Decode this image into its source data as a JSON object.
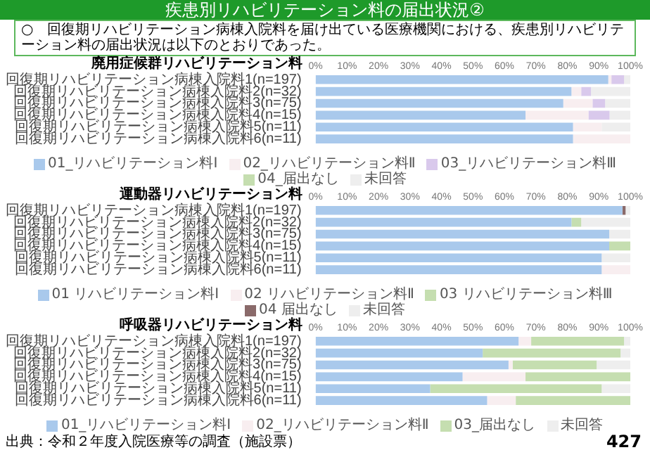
{
  "chart_data": [
    {
      "type": "bar",
      "orientation": "horizontal",
      "stacked": true,
      "title": "廃用症候群リハビリテーション料",
      "annotations": [
        "疾患別リハビリテーション料の届出状況②",
        "○　回復期リハビリテーション病棟入院料を届け出ている医療機関における、疾患別リハビリテーション料の届出状況は以下のとおりであった。"
      ],
      "categories": [
        "回復期リハビリテーション病棟入院料1(n=197)",
        "回復期リハビリテーション病棟入院料2(n=32)",
        "回復期リハビリテーション病棟入院料3(n=75)",
        "回復期リハビリテーション病棟入院料4(n=15)",
        "回復期リハビリテーション病棟入院料5(n=11)",
        "回復期リハビリテーション病棟入院料6(n=11)"
      ],
      "series": [
        {
          "name": "01_リハビリテーション料Ⅰ",
          "color": "#a9c9ec",
          "values": [
            93,
            81.3,
            78.7,
            66.7,
            81.8,
            81.8
          ]
        },
        {
          "name": "02_リハビリテーション料Ⅱ",
          "color": "#f8eef0",
          "values": [
            1,
            3.1,
            9.3,
            20,
            9.1,
            18.2
          ]
        },
        {
          "name": "03_リハビリテーション料Ⅲ",
          "color": "#d9c9ec",
          "values": [
            4,
            3.1,
            4,
            6.7,
            0,
            0
          ]
        },
        {
          "name": "04_届出なし",
          "color": "#c5deb0",
          "values": [
            0,
            0,
            0,
            0,
            0,
            0
          ]
        },
        {
          "name": "未回答",
          "color": "#eeeeee",
          "values": [
            2,
            12.5,
            8,
            6.6,
            9.1,
            0
          ]
        }
      ],
      "xlim": [
        0,
        100
      ],
      "xticks": [
        {
          "value": 0,
          "label": "0%"
        },
        {
          "value": 10,
          "label": "10%"
        },
        {
          "value": 20,
          "label": "20%"
        },
        {
          "value": 30,
          "label": "30%"
        },
        {
          "value": 40,
          "label": "40%"
        },
        {
          "value": 50,
          "label": "50%"
        },
        {
          "value": 60,
          "label": "60%"
        },
        {
          "value": 70,
          "label": "70%"
        },
        {
          "value": 80,
          "label": "80%"
        },
        {
          "value": 90,
          "label": "90%"
        },
        {
          "value": 100,
          "label": "100%"
        }
      ],
      "legend": "bottom"
    },
    {
      "type": "bar",
      "orientation": "horizontal",
      "stacked": true,
      "title": "運動器リハビリテーション料",
      "categories": [
        "回復期リハビリテーション病棟入院料1(n=197)",
        "回復期リハビリテーション病棟入院料2(n=32)",
        "回復期リハビリテーション病棟入院料3(n=75)",
        "回復期リハビリテーション病棟入院料4(n=15)",
        "回復期リハビリテーション病棟入院料5(n=11)",
        "回復期リハビリテーション病棟入院料6(n=11)"
      ],
      "series": [
        {
          "name": "01 リハビリテーション料Ⅰ",
          "color": "#a9c9ec",
          "values": [
            97.5,
            81.3,
            93.3,
            93.3,
            90.9,
            90.9
          ]
        },
        {
          "name": "02 リハビリテーション料Ⅱ",
          "color": "#f8eef0",
          "values": [
            0,
            0,
            0,
            0,
            0,
            9.1
          ]
        },
        {
          "name": "03 リハビリテーション料Ⅲ",
          "color": "#c5deb0",
          "values": [
            0,
            3.1,
            0,
            6.7,
            0,
            0
          ]
        },
        {
          "name": "04 届出なし",
          "color": "#8a6a6a",
          "values": [
            1,
            0,
            0,
            0,
            0,
            0
          ]
        },
        {
          "name": "未回答",
          "color": "#eeeeee",
          "values": [
            1.5,
            15.6,
            6.7,
            0,
            9.1,
            0
          ]
        }
      ],
      "xlim": [
        0,
        100
      ],
      "xticks": [
        {
          "value": 0,
          "label": "0%"
        },
        {
          "value": 10,
          "label": "10%"
        },
        {
          "value": 20,
          "label": "20%"
        },
        {
          "value": 30,
          "label": "30%"
        },
        {
          "value": 40,
          "label": "40%"
        },
        {
          "value": 50,
          "label": "50%"
        },
        {
          "value": 60,
          "label": "60%"
        },
        {
          "value": 70,
          "label": "70%"
        },
        {
          "value": 80,
          "label": "80%"
        },
        {
          "value": 90,
          "label": "90%"
        },
        {
          "value": 100,
          "label": "100%"
        }
      ],
      "legend": "bottom"
    },
    {
      "type": "bar",
      "orientation": "horizontal",
      "stacked": true,
      "title": "呼吸器リハビリテーション料",
      "annotations": [
        "出典：令和２年度入院医療等の調査（施設票）",
        "427"
      ],
      "categories": [
        "回復期リハビリテーション病棟入院料1(n=197)",
        "回復期リハビリテーション病棟入院料2(n=32)",
        "回復期リハビリテーション病棟入院料3(n=75)",
        "回復期リハビリテーション病棟入院料4(n=15)",
        "回復期リハビリテーション病棟入院料5(n=11)",
        "回復期リハビリテーション病棟入院料6(n=11)"
      ],
      "series": [
        {
          "name": "01_リハビリテーション料Ⅰ",
          "color": "#a9c9ec",
          "values": [
            64.5,
            53.1,
            61.3,
            46.7,
            36.4,
            54.5
          ]
        },
        {
          "name": "02_リハビリテーション料Ⅱ",
          "color": "#f8eef0",
          "values": [
            4,
            0,
            1.3,
            20,
            0,
            9.1
          ]
        },
        {
          "name": "03_届出なし",
          "color": "#c5deb0",
          "values": [
            29.5,
            43.8,
            26.7,
            33.3,
            54.5,
            36.4
          ]
        },
        {
          "name": "未回答",
          "color": "#eeeeee",
          "values": [
            2,
            3.1,
            10.7,
            0,
            9.1,
            0
          ]
        }
      ],
      "xlim": [
        0,
        100
      ],
      "xticks": [
        {
          "value": 0,
          "label": "0%"
        },
        {
          "value": 10,
          "label": "10%"
        },
        {
          "value": 20,
          "label": "20%"
        },
        {
          "value": 30,
          "label": "30%"
        },
        {
          "value": 40,
          "label": "40%"
        },
        {
          "value": 50,
          "label": "50%"
        },
        {
          "value": 60,
          "label": "60%"
        },
        {
          "value": 70,
          "label": "70%"
        },
        {
          "value": 80,
          "label": "80%"
        },
        {
          "value": 90,
          "label": "90%"
        },
        {
          "value": 100,
          "label": "100%"
        }
      ],
      "legend": "bottom"
    }
  ]
}
